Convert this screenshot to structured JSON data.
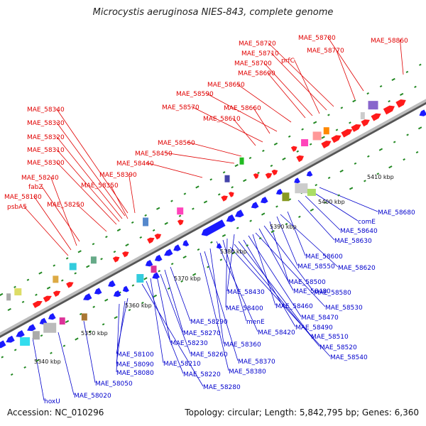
{
  "title": "Microcystis aeruginosa NIES-843, complete genome",
  "footer": {
    "accession": "Accession: NC_010296",
    "summary": "Topology: circular; Length: 5,842,795 bp; Genes: 6,360"
  },
  "colors": {
    "forward_label": "#e00000",
    "reverse_label": "#0000cc",
    "forward_gene": "#ff1a1a",
    "reverse_gene": "#1a1aff",
    "tick": "#228822",
    "backbone": "#999999"
  },
  "ruler_labels": [
    "5340 kbp",
    "5350 kbp",
    "5360 kbp",
    "5370 kbp",
    "5380 kbp",
    "5390 kbp",
    "5400 kbp",
    "5410 kbp"
  ],
  "forward_labels": [
    "MAE_58860",
    "MAE_58780",
    "MAE_58770",
    "MAE_58720",
    "MAE_58710",
    "prfC",
    "MAE_58700",
    "MAE_58690",
    "MAE_58650",
    "MAE_58590",
    "MAE_58660",
    "MAE_58570",
    "MAE_58610",
    "MAE_58560",
    "MAE_58450",
    "MAE_58440",
    "MAE_58390",
    "MAE_58350",
    "MAE_58340",
    "MAE_58330",
    "MAE_58320",
    "MAE_58310",
    "MAE_58300",
    "fabZ",
    "MAE_58240",
    "MAE_58180",
    "psbA5",
    "MAE_58250"
  ],
  "reverse_labels": [
    "MAE_58680",
    "comE",
    "MAE_58640",
    "MAE_58630",
    "MAE_58600",
    "MAE_58620",
    "MAE_58550",
    "MAE_58500",
    "MAE_58580",
    "MAE_58480",
    "MAE_58430",
    "MAE_58530",
    "MAE_58460",
    "MAE_58400",
    "MAE_58470",
    "menE",
    "MAE_58490",
    "MAE_58420",
    "MAE_58510",
    "MAE_58290",
    "MAE_58520",
    "MAE_58270",
    "MAE_58360",
    "MAE_58540",
    "MAE_58230",
    "MAE_58260",
    "MAE_58370",
    "MAE_58100",
    "MAE_58210",
    "MAE_58090",
    "MAE_58380",
    "MAE_58080",
    "MAE_58220",
    "MAE_58050",
    "MAE_58280",
    "hoxU",
    "MAE_58020"
  ]
}
